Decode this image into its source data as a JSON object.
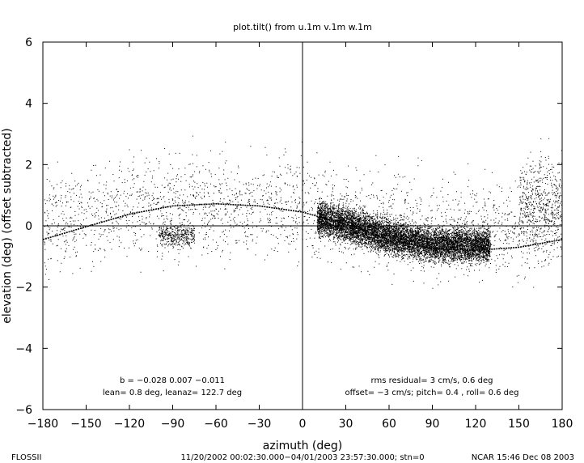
{
  "chart_data": {
    "type": "scatter",
    "title": "plot.tilt() from u.1m v.1m w.1m",
    "xlabel": "azimuth (deg)",
    "ylabel": "elevation (deg)  (offset subtracted)",
    "xlim": [
      -180,
      180
    ],
    "ylim": [
      -6,
      6
    ],
    "x_ticks": [
      -180,
      -150,
      -120,
      -90,
      -60,
      -30,
      0,
      30,
      60,
      90,
      120,
      150,
      180
    ],
    "x_tick_labels": [
      "−180",
      "−150",
      "−120",
      "−90",
      "−60",
      "−30",
      "0",
      "30",
      "60",
      "90",
      "120",
      "150",
      "180"
    ],
    "y_ticks": [
      -6,
      -4,
      -2,
      0,
      2,
      4,
      6
    ],
    "y_tick_labels": [
      "−6",
      "−4",
      "−2",
      "0",
      "2",
      "4",
      "6"
    ],
    "grid": false,
    "reference_lines": {
      "x": 0,
      "y": 0
    },
    "fit_curve": {
      "description_free": true,
      "x": [
        -180,
        -150,
        -120,
        -90,
        -60,
        -30,
        0,
        30,
        60,
        90,
        120,
        150,
        180
      ],
      "y": [
        -0.45,
        -0.03,
        0.38,
        0.65,
        0.72,
        0.65,
        0.45,
        0.05,
        -0.45,
        -0.75,
        -0.8,
        -0.7,
        -0.45
      ]
    },
    "point_clusters": [
      {
        "x_range": [
          -180,
          180
        ],
        "y_mean": 0.3,
        "y_spread": 1.3,
        "count": 2600
      },
      {
        "x_range": [
          -100,
          -75
        ],
        "y_mean": -0.3,
        "y_spread": 0.3,
        "count": 400
      },
      {
        "x_range": [
          10,
          130
        ],
        "y_mean": -0.35,
        "y_spread": 0.45,
        "count": 9000
      },
      {
        "x_range": [
          150,
          180
        ],
        "y_mean": 0.8,
        "y_spread": 1.2,
        "count": 500
      }
    ],
    "annotations": {
      "left_line1": "b = −0.028  0.007  −0.011",
      "left_line2": "lean= 0.8 deg, leanaz= 122.7 deg",
      "right_line1": "rms residual= 3 cm/s, 0.6 deg",
      "right_line2": "offset= −3 cm/s; pitch= 0.4 , roll= 0.6 deg"
    }
  },
  "footer": {
    "left": "FLOSSII",
    "center": "11/20/2002 00:02:30.000−04/01/2003 23:57:30.000; stn=0",
    "right": "NCAR 15:46 Dec 08 2003"
  }
}
